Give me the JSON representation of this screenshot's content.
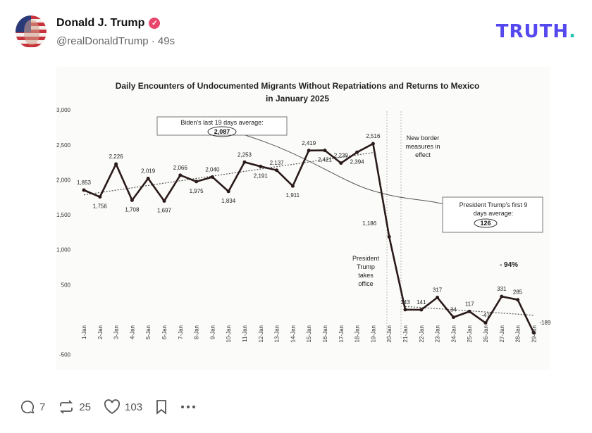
{
  "post": {
    "author_name": "Donald J. Trump",
    "verified_icon": "verified-badge-icon",
    "handle": "@realDonaldTrump",
    "time": "49s",
    "brand": "TRUTH",
    "brand_dot": ".",
    "brand_color": "#5448ee",
    "accent_color": "#27c3b0"
  },
  "actions": {
    "replies": "7",
    "retruths": "25",
    "likes": "103"
  },
  "chart_data": {
    "type": "line",
    "title_line1": "Daily Encounters of Undocumented Migrants Without Repatriations and Returns to Mexico",
    "title_line2": "in January 2025",
    "categories": [
      "1-Jan",
      "2-Jan",
      "3-Jan",
      "4-Jan",
      "5-Jan",
      "6-Jan",
      "7-Jan",
      "8-Jan",
      "9-Jan",
      "10-Jan",
      "11-Jan",
      "12-Jan",
      "13-Jan",
      "14-Jan",
      "15-Jan",
      "16-Jan",
      "17-Jan",
      "18-Jan",
      "19-Jan",
      "20-Jan",
      "21-Jan",
      "22-Jan",
      "23-Jan",
      "24-Jan",
      "25-Jan",
      "26-Jan",
      "27-Jan",
      "28-Jan",
      "29-Jan"
    ],
    "values": [
      1853,
      1756,
      2226,
      1708,
      2019,
      1697,
      2066,
      1975,
      2040,
      1834,
      2253,
      2191,
      2137,
      1911,
      2419,
      2421,
      2239,
      2394,
      2516,
      1186,
      143,
      141,
      317,
      34,
      117,
      -47,
      331,
      285,
      -189
    ],
    "data_labels": [
      "1,853",
      "1,756",
      "2,226",
      "1,708",
      "2,019",
      "1,697",
      "2,066",
      "1,975",
      "2,040",
      "1,834",
      "2,253",
      "2,191",
      "2,137",
      "1,911",
      "2,419",
      "2,421",
      "2,239",
      "2,394",
      "2,516",
      "1,186",
      "143",
      "141",
      "317",
      "34",
      "117",
      "-47",
      "331",
      "285",
      "-189"
    ],
    "yticks": [
      "3,000",
      "2,500",
      "2,000",
      "1,500",
      "1,000",
      "500",
      "-500"
    ],
    "ytick_values": [
      3000,
      2500,
      2000,
      1500,
      1000,
      500,
      -500
    ],
    "ylim": [
      -500,
      3000
    ],
    "trendlines": "dotted linear trend for 1-Jan–19-Jan and 21-Jan–29-Jan",
    "annotations": {
      "biden_label": "Biden's last 19 days average:",
      "biden_value": "2,087",
      "trump_label1": "President Trump's first 9",
      "trump_label2": "days average:",
      "trump_value": "126",
      "border1": "New border",
      "border2": "measures in",
      "border3": "effect",
      "office1": "President",
      "office2": "Trump",
      "office3": "takes",
      "office4": "office",
      "change": "- 94%"
    },
    "grid": false
  }
}
